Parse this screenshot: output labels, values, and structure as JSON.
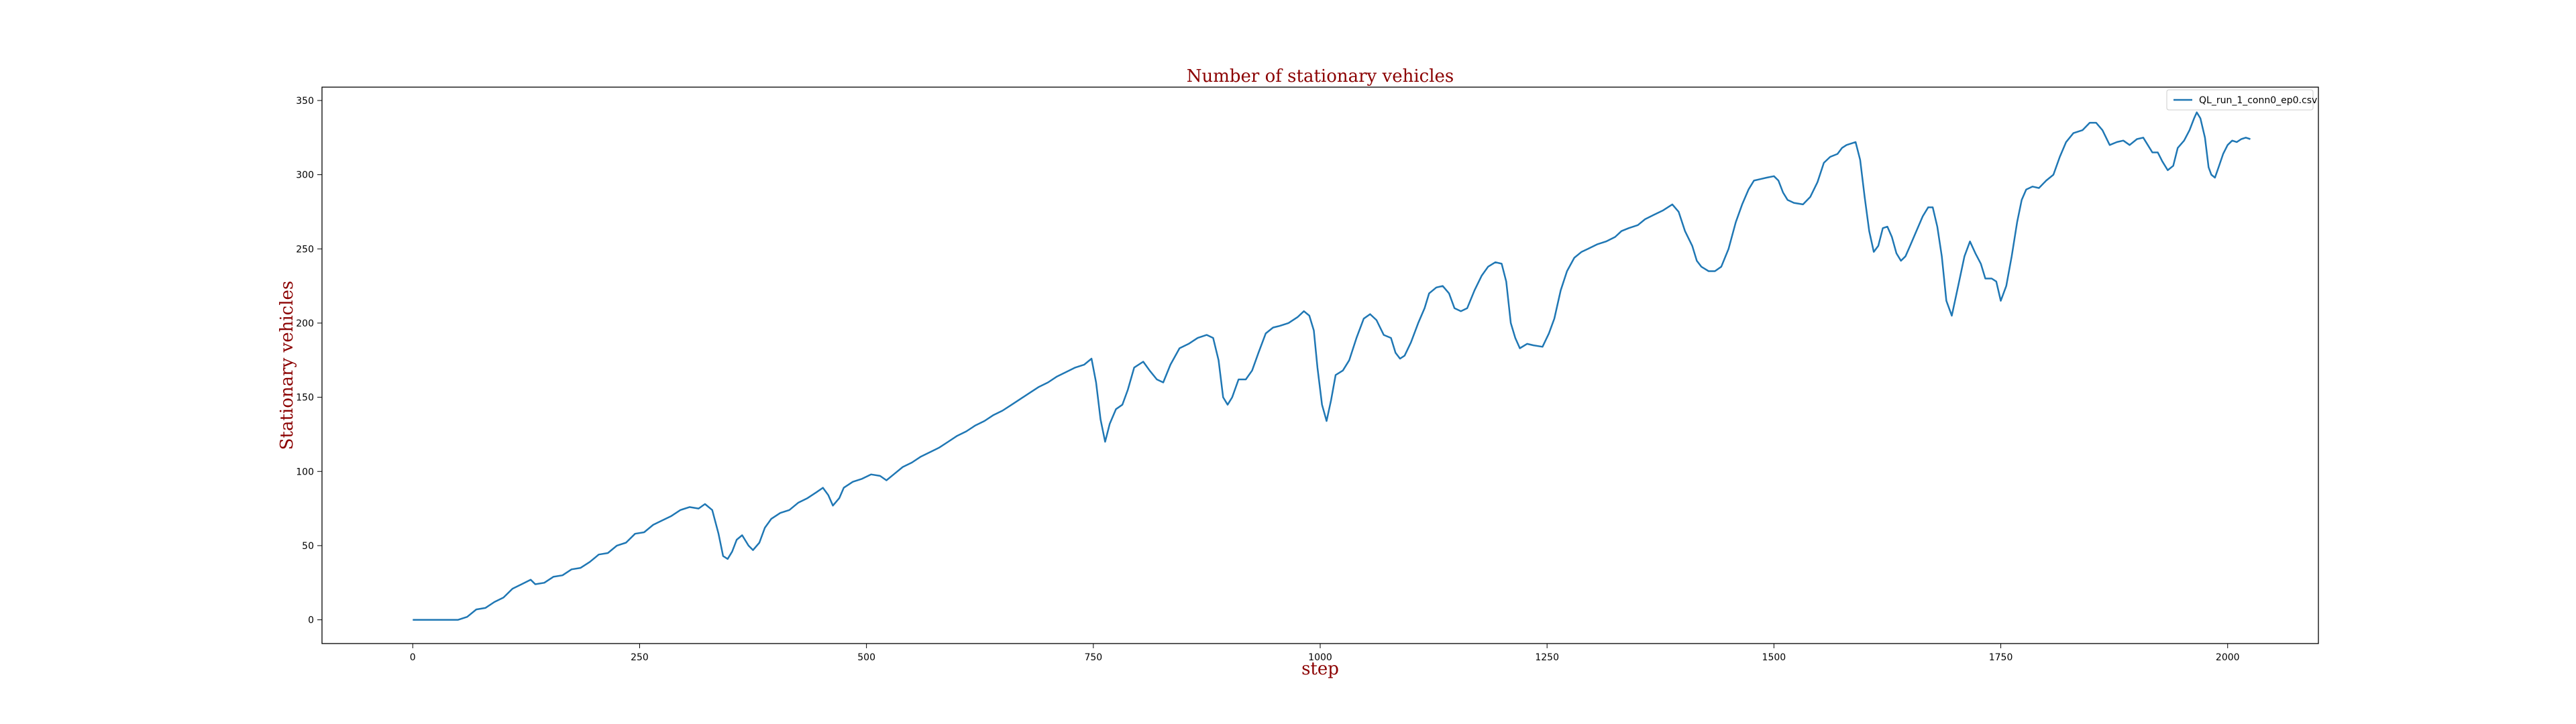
{
  "chart_data": {
    "type": "line",
    "title": "Number of stationary vehicles",
    "xlabel": "step",
    "ylabel": "Stationary vehicles",
    "xlim": [
      -100,
      2100
    ],
    "ylim": [
      -16,
      359
    ],
    "xticks": [
      0,
      250,
      500,
      750,
      1000,
      1250,
      1500,
      1750,
      2000
    ],
    "yticks": [
      0,
      50,
      100,
      150,
      200,
      250,
      300,
      350
    ],
    "grid": false,
    "legend_position": "top-right",
    "line_color": "#1f77b4",
    "series": [
      {
        "name": "QL_run_1_conn0_ep0.csv",
        "points": [
          [
            0,
            0
          ],
          [
            20,
            0
          ],
          [
            40,
            0
          ],
          [
            50,
            0
          ],
          [
            60,
            2
          ],
          [
            70,
            7
          ],
          [
            80,
            8
          ],
          [
            90,
            12
          ],
          [
            100,
            15
          ],
          [
            110,
            21
          ],
          [
            120,
            24
          ],
          [
            130,
            27
          ],
          [
            135,
            24
          ],
          [
            145,
            25
          ],
          [
            155,
            29
          ],
          [
            165,
            30
          ],
          [
            175,
            34
          ],
          [
            185,
            35
          ],
          [
            195,
            39
          ],
          [
            205,
            44
          ],
          [
            215,
            45
          ],
          [
            225,
            50
          ],
          [
            235,
            52
          ],
          [
            245,
            58
          ],
          [
            255,
            59
          ],
          [
            265,
            64
          ],
          [
            275,
            67
          ],
          [
            285,
            70
          ],
          [
            295,
            74
          ],
          [
            305,
            76
          ],
          [
            315,
            75
          ],
          [
            322,
            78
          ],
          [
            330,
            74
          ],
          [
            337,
            58
          ],
          [
            342,
            43
          ],
          [
            347,
            41
          ],
          [
            352,
            46
          ],
          [
            357,
            54
          ],
          [
            363,
            57
          ],
          [
            370,
            50
          ],
          [
            375,
            47
          ],
          [
            382,
            52
          ],
          [
            388,
            62
          ],
          [
            395,
            68
          ],
          [
            405,
            72
          ],
          [
            415,
            74
          ],
          [
            425,
            79
          ],
          [
            435,
            82
          ],
          [
            445,
            86
          ],
          [
            452,
            89
          ],
          [
            458,
            84
          ],
          [
            463,
            77
          ],
          [
            470,
            82
          ],
          [
            475,
            89
          ],
          [
            485,
            93
          ],
          [
            495,
            95
          ],
          [
            505,
            98
          ],
          [
            515,
            97
          ],
          [
            522,
            94
          ],
          [
            530,
            98
          ],
          [
            540,
            103
          ],
          [
            550,
            106
          ],
          [
            560,
            110
          ],
          [
            570,
            113
          ],
          [
            580,
            116
          ],
          [
            590,
            120
          ],
          [
            600,
            124
          ],
          [
            610,
            127
          ],
          [
            620,
            131
          ],
          [
            630,
            134
          ],
          [
            640,
            138
          ],
          [
            650,
            141
          ],
          [
            660,
            145
          ],
          [
            670,
            149
          ],
          [
            680,
            153
          ],
          [
            690,
            157
          ],
          [
            700,
            160
          ],
          [
            710,
            164
          ],
          [
            720,
            167
          ],
          [
            730,
            170
          ],
          [
            740,
            172
          ],
          [
            748,
            176
          ],
          [
            753,
            160
          ],
          [
            758,
            135
          ],
          [
            763,
            120
          ],
          [
            768,
            132
          ],
          [
            775,
            142
          ],
          [
            782,
            145
          ],
          [
            788,
            155
          ],
          [
            795,
            170
          ],
          [
            805,
            174
          ],
          [
            812,
            168
          ],
          [
            820,
            162
          ],
          [
            827,
            160
          ],
          [
            835,
            172
          ],
          [
            845,
            183
          ],
          [
            855,
            186
          ],
          [
            865,
            190
          ],
          [
            875,
            192
          ],
          [
            882,
            190
          ],
          [
            888,
            175
          ],
          [
            893,
            150
          ],
          [
            898,
            145
          ],
          [
            903,
            150
          ],
          [
            910,
            162
          ],
          [
            918,
            162
          ],
          [
            925,
            168
          ],
          [
            932,
            180
          ],
          [
            940,
            193
          ],
          [
            948,
            197
          ],
          [
            955,
            198
          ],
          [
            965,
            200
          ],
          [
            975,
            204
          ],
          [
            982,
            208
          ],
          [
            988,
            205
          ],
          [
            993,
            195
          ],
          [
            997,
            170
          ],
          [
            1002,
            145
          ],
          [
            1007,
            134
          ],
          [
            1012,
            148
          ],
          [
            1017,
            165
          ],
          [
            1025,
            168
          ],
          [
            1032,
            175
          ],
          [
            1040,
            190
          ],
          [
            1048,
            203
          ],
          [
            1055,
            206
          ],
          [
            1062,
            202
          ],
          [
            1070,
            192
          ],
          [
            1078,
            190
          ],
          [
            1083,
            180
          ],
          [
            1088,
            176
          ],
          [
            1093,
            178
          ],
          [
            1100,
            187
          ],
          [
            1108,
            200
          ],
          [
            1115,
            210
          ],
          [
            1120,
            220
          ],
          [
            1128,
            224
          ],
          [
            1135,
            225
          ],
          [
            1142,
            220
          ],
          [
            1148,
            210
          ],
          [
            1155,
            208
          ],
          [
            1162,
            210
          ],
          [
            1170,
            222
          ],
          [
            1178,
            232
          ],
          [
            1185,
            238
          ],
          [
            1193,
            241
          ],
          [
            1200,
            240
          ],
          [
            1205,
            228
          ],
          [
            1210,
            200
          ],
          [
            1215,
            190
          ],
          [
            1220,
            183
          ],
          [
            1228,
            186
          ],
          [
            1235,
            185
          ],
          [
            1245,
            184
          ],
          [
            1252,
            193
          ],
          [
            1258,
            203
          ],
          [
            1265,
            222
          ],
          [
            1272,
            235
          ],
          [
            1280,
            244
          ],
          [
            1288,
            248
          ],
          [
            1295,
            250
          ],
          [
            1305,
            253
          ],
          [
            1315,
            255
          ],
          [
            1325,
            258
          ],
          [
            1332,
            262
          ],
          [
            1340,
            264
          ],
          [
            1350,
            266
          ],
          [
            1358,
            270
          ],
          [
            1368,
            273
          ],
          [
            1378,
            276
          ],
          [
            1388,
            280
          ],
          [
            1395,
            275
          ],
          [
            1402,
            262
          ],
          [
            1410,
            252
          ],
          [
            1415,
            242
          ],
          [
            1420,
            238
          ],
          [
            1428,
            235
          ],
          [
            1435,
            235
          ],
          [
            1442,
            238
          ],
          [
            1450,
            250
          ],
          [
            1458,
            268
          ],
          [
            1465,
            280
          ],
          [
            1472,
            290
          ],
          [
            1478,
            296
          ],
          [
            1485,
            297
          ],
          [
            1492,
            298
          ],
          [
            1500,
            299
          ],
          [
            1505,
            296
          ],
          [
            1510,
            288
          ],
          [
            1515,
            283
          ],
          [
            1522,
            281
          ],
          [
            1532,
            280
          ],
          [
            1540,
            285
          ],
          [
            1548,
            295
          ],
          [
            1555,
            308
          ],
          [
            1562,
            312
          ],
          [
            1570,
            314
          ],
          [
            1575,
            318
          ],
          [
            1580,
            320
          ],
          [
            1590,
            322
          ],
          [
            1595,
            310
          ],
          [
            1600,
            285
          ],
          [
            1605,
            262
          ],
          [
            1610,
            248
          ],
          [
            1615,
            252
          ],
          [
            1620,
            264
          ],
          [
            1625,
            265
          ],
          [
            1630,
            258
          ],
          [
            1635,
            247
          ],
          [
            1640,
            242
          ],
          [
            1645,
            245
          ],
          [
            1650,
            252
          ],
          [
            1657,
            262
          ],
          [
            1664,
            272
          ],
          [
            1670,
            278
          ],
          [
            1675,
            278
          ],
          [
            1680,
            265
          ],
          [
            1685,
            245
          ],
          [
            1690,
            215
          ],
          [
            1696,
            205
          ],
          [
            1703,
            225
          ],
          [
            1710,
            245
          ],
          [
            1716,
            255
          ],
          [
            1722,
            247
          ],
          [
            1728,
            240
          ],
          [
            1733,
            230
          ],
          [
            1740,
            230
          ],
          [
            1745,
            228
          ],
          [
            1750,
            215
          ],
          [
            1756,
            225
          ],
          [
            1762,
            245
          ],
          [
            1768,
            268
          ],
          [
            1773,
            283
          ],
          [
            1778,
            290
          ],
          [
            1785,
            292
          ],
          [
            1792,
            291
          ],
          [
            1800,
            296
          ],
          [
            1808,
            300
          ],
          [
            1815,
            312
          ],
          [
            1822,
            322
          ],
          [
            1830,
            328
          ],
          [
            1840,
            330
          ],
          [
            1848,
            335
          ],
          [
            1855,
            335
          ],
          [
            1862,
            330
          ],
          [
            1870,
            320
          ],
          [
            1878,
            322
          ],
          [
            1885,
            323
          ],
          [
            1892,
            320
          ],
          [
            1900,
            324
          ],
          [
            1907,
            325
          ],
          [
            1912,
            320
          ],
          [
            1917,
            315
          ],
          [
            1923,
            315
          ],
          [
            1928,
            309
          ],
          [
            1934,
            303
          ],
          [
            1940,
            306
          ],
          [
            1945,
            318
          ],
          [
            1952,
            323
          ],
          [
            1958,
            330
          ],
          [
            1963,
            338
          ],
          [
            1966,
            342
          ],
          [
            1970,
            338
          ],
          [
            1975,
            325
          ],
          [
            1979,
            305
          ],
          [
            1982,
            300
          ],
          [
            1986,
            298
          ],
          [
            1990,
            305
          ],
          [
            1995,
            314
          ],
          [
            2000,
            320
          ],
          [
            2005,
            323
          ],
          [
            2010,
            322
          ],
          [
            2015,
            324
          ],
          [
            2020,
            325
          ],
          [
            2025,
            324
          ]
        ]
      }
    ]
  }
}
